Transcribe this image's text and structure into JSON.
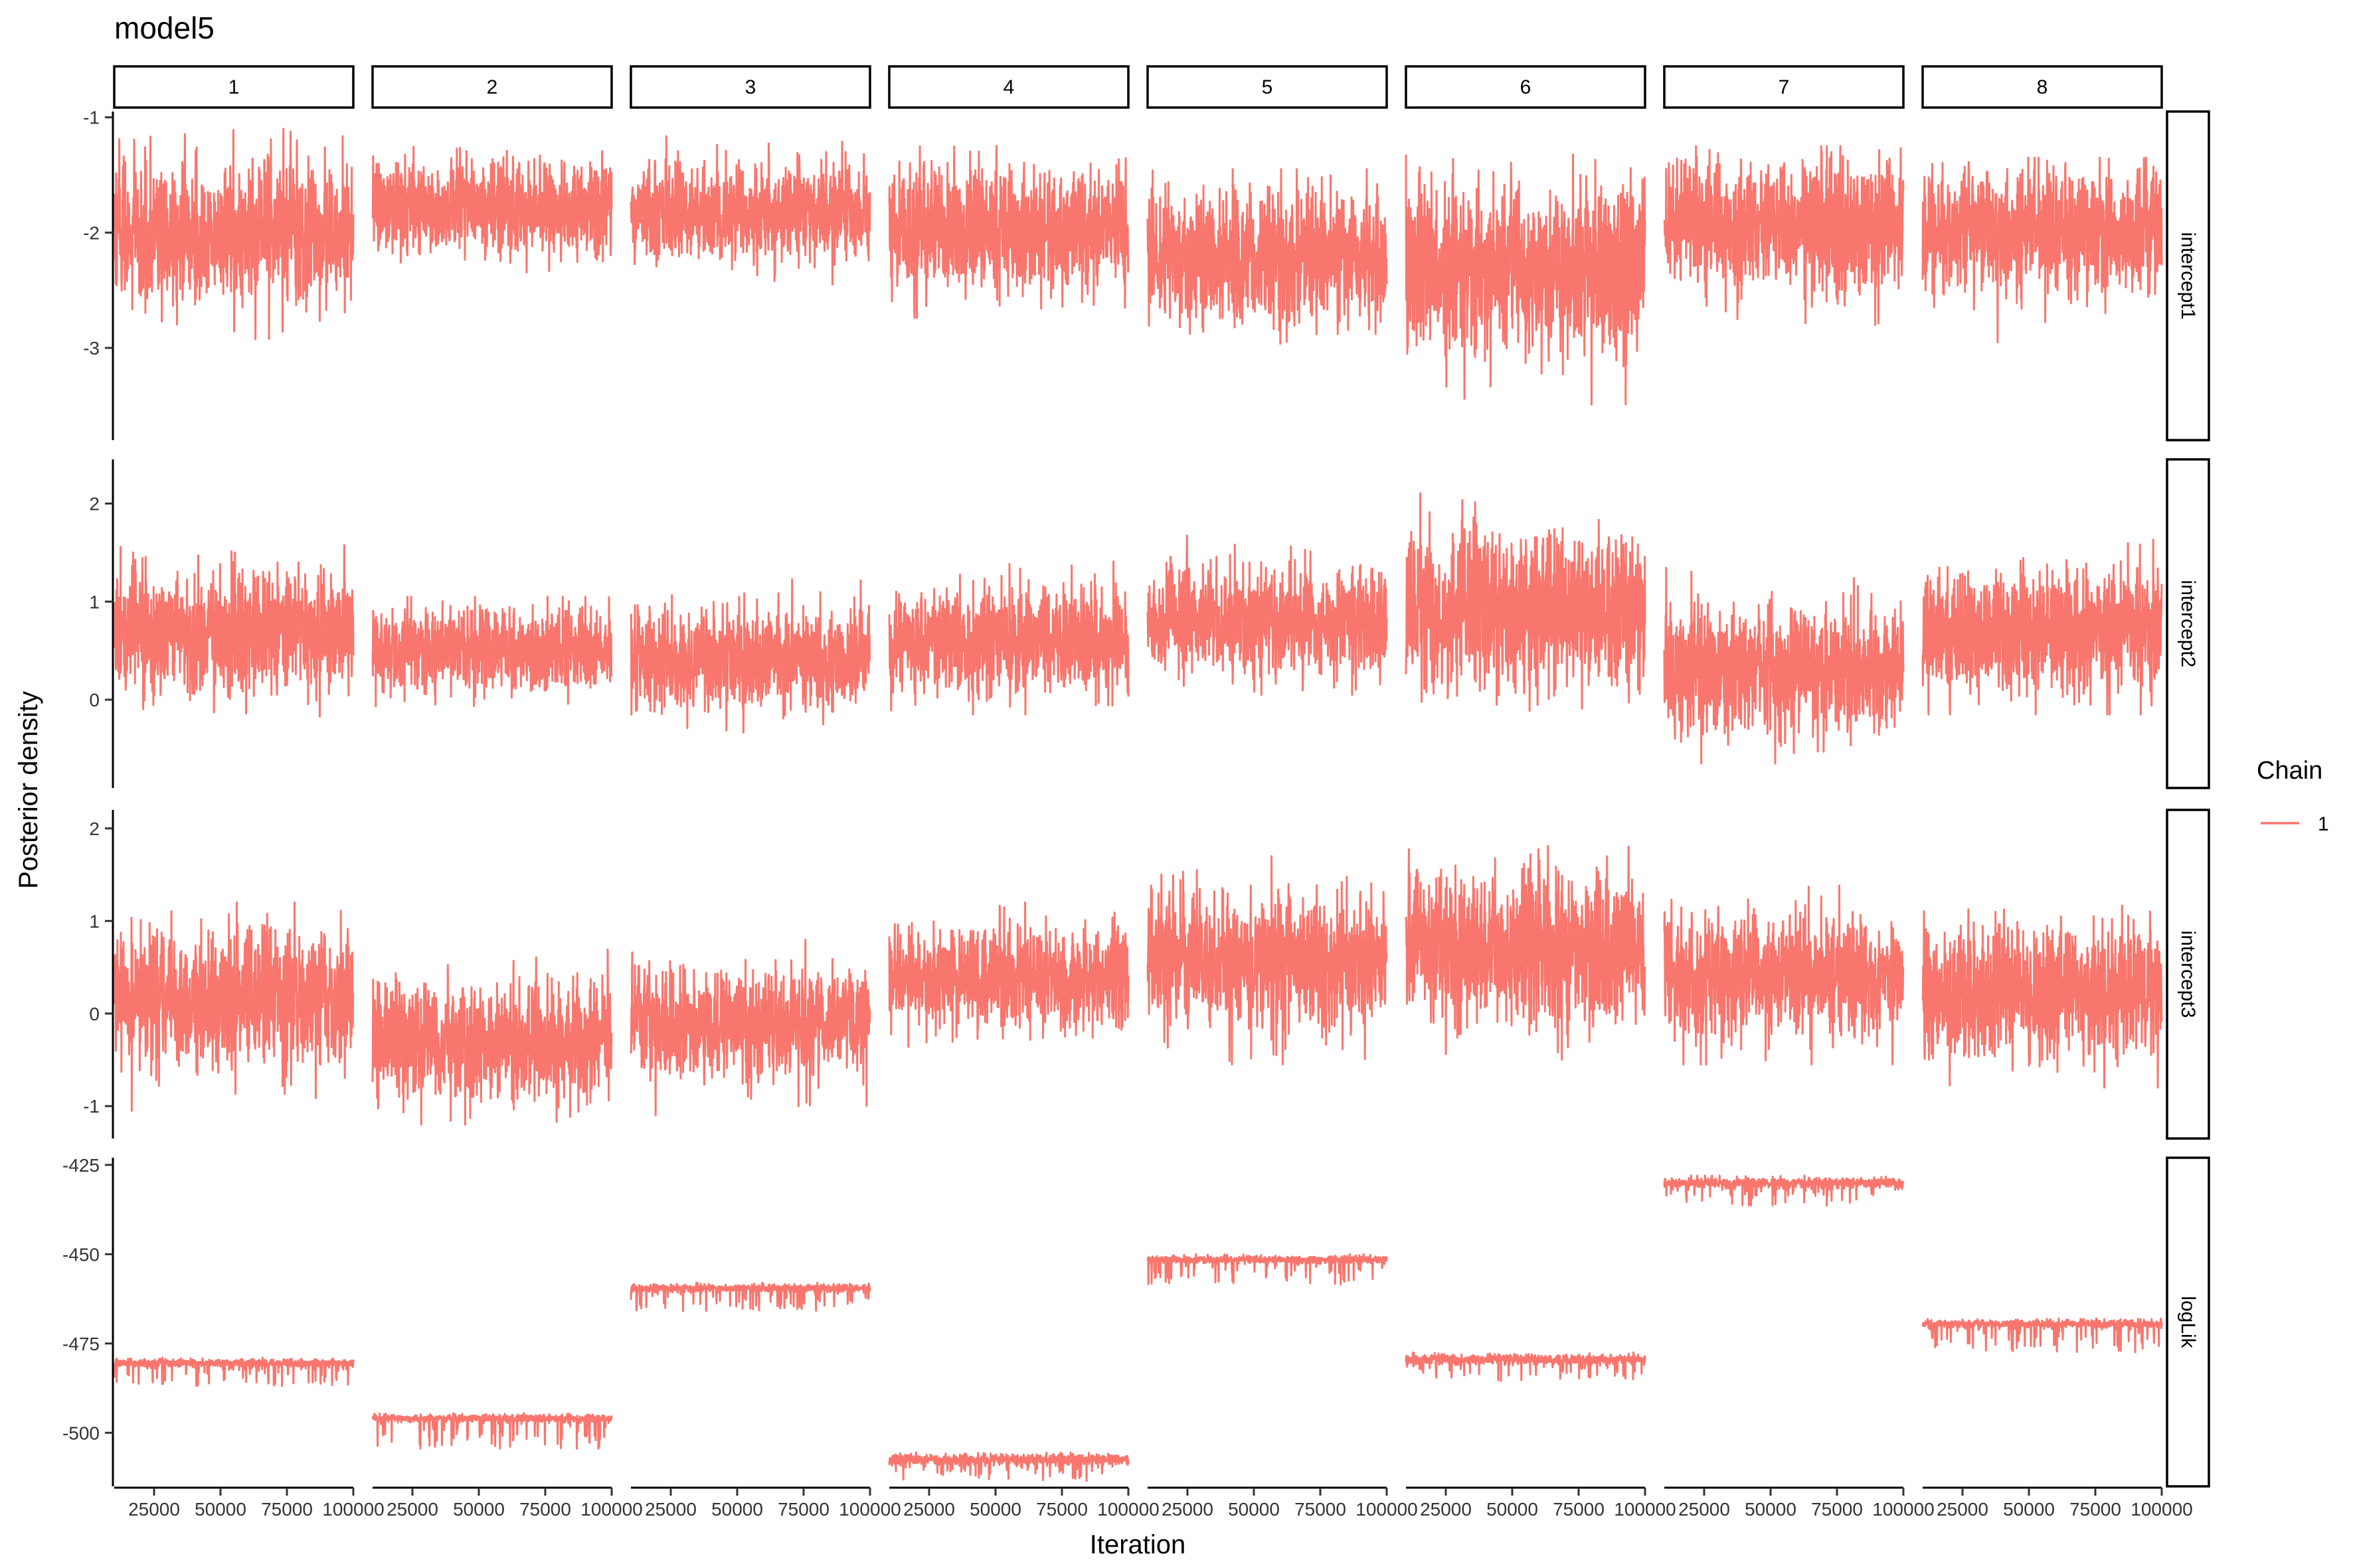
{
  "chart_data": {
    "type": "line",
    "title": "model5",
    "xlabel": "Iteration",
    "ylabel": "Posterior density",
    "facet_columns": [
      "1",
      "2",
      "3",
      "4",
      "5",
      "6",
      "7",
      "8"
    ],
    "facet_rows": [
      "intercept1",
      "intercept2",
      "intercept3",
      "logLik"
    ],
    "x_range": [
      10000,
      100000
    ],
    "x_ticks": [
      25000,
      50000,
      75000,
      100000
    ],
    "x_tick_labels": [
      "25000",
      "50000",
      "75000",
      "100000"
    ],
    "row_axes": [
      {
        "row": "intercept1",
        "ylim": [
          -3.8,
          -0.95
        ],
        "ticks": [
          -3,
          -2,
          -1
        ],
        "tick_labels": [
          "-3",
          "-2",
          "-1"
        ]
      },
      {
        "row": "intercept2",
        "ylim": [
          -0.9,
          2.45
        ],
        "ticks": [
          0,
          1,
          2
        ],
        "tick_labels": [
          "0",
          "1",
          "2"
        ]
      },
      {
        "row": "intercept3",
        "ylim": [
          -1.35,
          2.2
        ],
        "ticks": [
          -1,
          0,
          1,
          2
        ],
        "tick_labels": [
          "-1",
          "0",
          "1",
          "2"
        ]
      },
      {
        "row": "logLik",
        "ylim": [
          -515,
          -423
        ],
        "ticks": [
          -500,
          -475,
          -450,
          -425
        ],
        "tick_labels": [
          "-500",
          "-475",
          "-450",
          "-425"
        ]
      }
    ],
    "legend": {
      "title": "Chain",
      "entries": [
        "1"
      ],
      "position": "right"
    },
    "series_color": "#F8766D",
    "traces": {
      "intercept1": [
        {
          "mean": -2.0,
          "range": [
            -3.05,
            -1.1
          ]
        },
        {
          "mean": -1.78,
          "range": [
            -2.45,
            -1.15
          ]
        },
        {
          "mean": -1.82,
          "range": [
            -2.45,
            -1.15
          ]
        },
        {
          "mean": -1.97,
          "range": [
            -2.85,
            -1.15
          ]
        },
        {
          "mean": -2.2,
          "range": [
            -3.25,
            -1.45
          ]
        },
        {
          "mean": -2.3,
          "range": [
            -3.6,
            -1.3
          ]
        },
        {
          "mean": -1.95,
          "range": [
            -3.1,
            -1.25
          ]
        },
        {
          "mean": -2.0,
          "range": [
            -3.05,
            -1.35
          ]
        }
      ],
      "intercept2": [
        {
          "mean": 0.68,
          "range": [
            -0.25,
            1.8
          ]
        },
        {
          "mean": 0.5,
          "range": [
            -0.3,
            1.05
          ]
        },
        {
          "mean": 0.42,
          "range": [
            -0.35,
            1.3
          ]
        },
        {
          "mean": 0.58,
          "range": [
            -0.15,
            1.6
          ]
        },
        {
          "mean": 0.8,
          "range": [
            0.05,
            1.75
          ]
        },
        {
          "mean": 0.9,
          "range": [
            -0.2,
            2.3
          ]
        },
        {
          "mean": 0.3,
          "range": [
            -0.65,
            1.45
          ]
        },
        {
          "mean": 0.68,
          "range": [
            -0.15,
            1.85
          ]
        }
      ],
      "intercept3": [
        {
          "mean": 0.15,
          "range": [
            -1.05,
            1.2
          ]
        },
        {
          "mean": -0.3,
          "range": [
            -1.2,
            0.8
          ]
        },
        {
          "mean": -0.1,
          "range": [
            -1.1,
            0.8
          ]
        },
        {
          "mean": 0.4,
          "range": [
            -0.55,
            1.2
          ]
        },
        {
          "mean": 0.55,
          "range": [
            -0.55,
            1.7
          ]
        },
        {
          "mean": 0.72,
          "range": [
            -0.5,
            2.1
          ]
        },
        {
          "mean": 0.4,
          "range": [
            -0.55,
            1.6
          ]
        },
        {
          "mean": 0.25,
          "range": [
            -0.8,
            1.45
          ]
        }
      ],
      "logLik": [
        {
          "mean": -480.5,
          "range": [
            -487.0,
            -479.0
          ]
        },
        {
          "mean": -496.0,
          "range": [
            -504.5,
            -494.5
          ]
        },
        {
          "mean": -459.5,
          "range": [
            -466.0,
            -458.0
          ]
        },
        {
          "mean": -507.5,
          "range": [
            -513.5,
            -505.5
          ]
        },
        {
          "mean": -451.5,
          "range": [
            -458.5,
            -450.0
          ]
        },
        {
          "mean": -479.5,
          "range": [
            -485.5,
            -477.5
          ]
        },
        {
          "mean": -430.0,
          "range": [
            -436.5,
            -428.0
          ]
        },
        {
          "mean": -469.5,
          "range": [
            -477.5,
            -468.0
          ]
        }
      ]
    }
  }
}
